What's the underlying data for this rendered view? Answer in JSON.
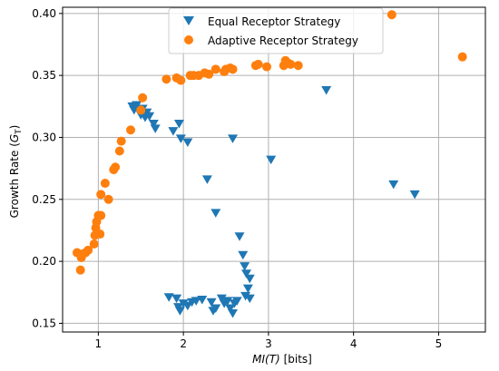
{
  "chart_data": {
    "type": "scatter",
    "xlabel_italic": "MI(T)",
    "xlabel_rest": " [bits]",
    "ylabel_main": "Growth Rate (",
    "ylabel_sym": "G",
    "ylabel_sub": "T",
    "ylabel_close": ")",
    "xlim": [
      0.58,
      5.55
    ],
    "ylim": [
      0.143,
      0.405
    ],
    "xticks": [
      1,
      2,
      3,
      4,
      5
    ],
    "yticks": [
      0.15,
      0.2,
      0.25,
      0.3,
      0.35,
      0.4
    ],
    "ytick_labels": [
      "0.15",
      "0.20",
      "0.25",
      "0.30",
      "0.35",
      "0.40"
    ],
    "xtick_labels": [
      "1",
      "2",
      "3",
      "4",
      "5"
    ],
    "grid": true,
    "legend_position": "top-center",
    "series": [
      {
        "name": "Equal Receptor Strategy",
        "marker": "triangle-down",
        "color": "#1f77b4",
        "points": [
          [
            1.4,
            0.325
          ],
          [
            1.42,
            0.322
          ],
          [
            1.45,
            0.326
          ],
          [
            1.5,
            0.318
          ],
          [
            1.52,
            0.323
          ],
          [
            1.55,
            0.316
          ],
          [
            1.57,
            0.32
          ],
          [
            1.6,
            0.317
          ],
          [
            1.65,
            0.311
          ],
          [
            1.67,
            0.307
          ],
          [
            1.88,
            0.305
          ],
          [
            1.95,
            0.311
          ],
          [
            1.97,
            0.299
          ],
          [
            2.05,
            0.296
          ],
          [
            2.58,
            0.299
          ],
          [
            2.28,
            0.266
          ],
          [
            2.38,
            0.239
          ],
          [
            3.03,
            0.282
          ],
          [
            3.68,
            0.338
          ],
          [
            4.47,
            0.262
          ],
          [
            4.72,
            0.254
          ],
          [
            1.83,
            0.171
          ],
          [
            1.92,
            0.17
          ],
          [
            1.94,
            0.163
          ],
          [
            1.96,
            0.16
          ],
          [
            2.0,
            0.166
          ],
          [
            2.05,
            0.164
          ],
          [
            2.1,
            0.167
          ],
          [
            2.15,
            0.168
          ],
          [
            2.22,
            0.169
          ],
          [
            2.33,
            0.167
          ],
          [
            2.35,
            0.16
          ],
          [
            2.38,
            0.162
          ],
          [
            2.45,
            0.17
          ],
          [
            2.48,
            0.166
          ],
          [
            2.52,
            0.168
          ],
          [
            2.55,
            0.162
          ],
          [
            2.58,
            0.158
          ],
          [
            2.6,
            0.166
          ],
          [
            2.63,
            0.168
          ],
          [
            2.66,
            0.22
          ],
          [
            2.7,
            0.205
          ],
          [
            2.72,
            0.196
          ],
          [
            2.74,
            0.19
          ],
          [
            2.78,
            0.186
          ],
          [
            2.76,
            0.178
          ],
          [
            2.73,
            0.172
          ],
          [
            2.78,
            0.17
          ]
        ]
      },
      {
        "name": "Adaptive Receptor Strategy",
        "marker": "circle",
        "color": "#ff7f0e",
        "points": [
          [
            0.75,
            0.207
          ],
          [
            0.79,
            0.193
          ],
          [
            0.8,
            0.203
          ],
          [
            0.82,
            0.206
          ],
          [
            0.85,
            0.207
          ],
          [
            0.88,
            0.209
          ],
          [
            0.95,
            0.214
          ],
          [
            0.96,
            0.221
          ],
          [
            0.97,
            0.227
          ],
          [
            0.98,
            0.232
          ],
          [
            1.0,
            0.237
          ],
          [
            1.02,
            0.222
          ],
          [
            1.03,
            0.237
          ],
          [
            1.03,
            0.254
          ],
          [
            1.08,
            0.263
          ],
          [
            1.12,
            0.25
          ],
          [
            1.18,
            0.274
          ],
          [
            1.2,
            0.276
          ],
          [
            1.25,
            0.289
          ],
          [
            1.27,
            0.297
          ],
          [
            1.38,
            0.306
          ],
          [
            1.5,
            0.322
          ],
          [
            1.52,
            0.332
          ],
          [
            1.8,
            0.347
          ],
          [
            1.92,
            0.348
          ],
          [
            1.97,
            0.346
          ],
          [
            2.08,
            0.35
          ],
          [
            2.12,
            0.35
          ],
          [
            2.18,
            0.35
          ],
          [
            2.25,
            0.352
          ],
          [
            2.3,
            0.351
          ],
          [
            2.38,
            0.355
          ],
          [
            2.48,
            0.353
          ],
          [
            2.5,
            0.355
          ],
          [
            2.55,
            0.356
          ],
          [
            2.58,
            0.355
          ],
          [
            2.85,
            0.358
          ],
          [
            2.88,
            0.359
          ],
          [
            2.98,
            0.357
          ],
          [
            3.18,
            0.358
          ],
          [
            3.2,
            0.362
          ],
          [
            3.23,
            0.36
          ],
          [
            3.26,
            0.359
          ],
          [
            3.35,
            0.358
          ],
          [
            4.45,
            0.399
          ],
          [
            5.28,
            0.365
          ]
        ]
      }
    ]
  }
}
